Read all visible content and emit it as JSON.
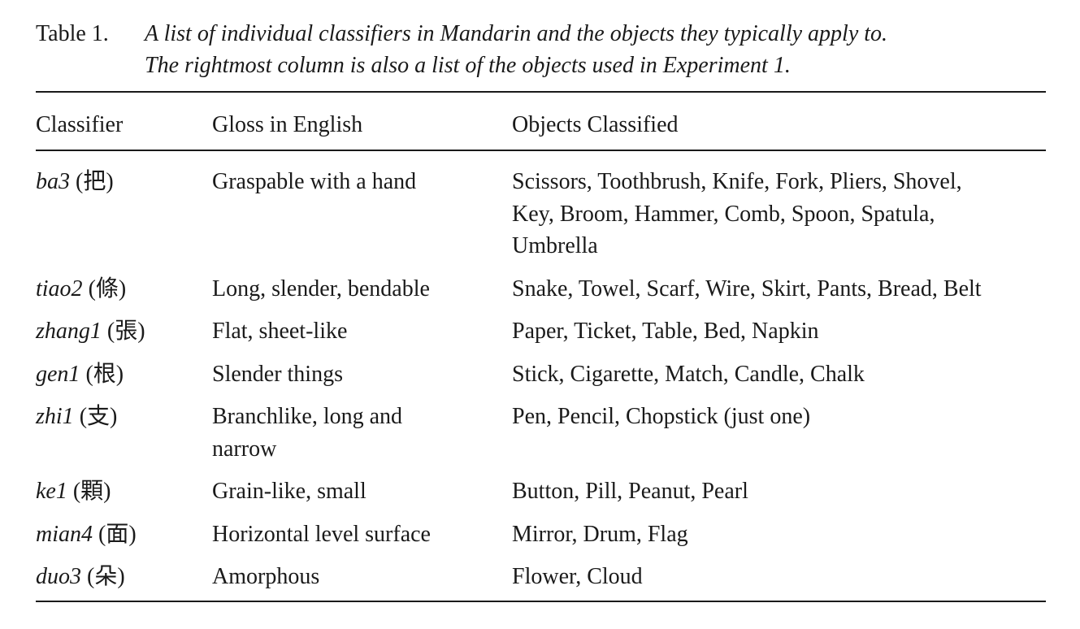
{
  "caption": {
    "label": "Table 1.",
    "lines": [
      "A list of individual classifiers in Mandarin and the objects they typically apply to.",
      "The rightmost column is also a list of the objects used in Experiment 1."
    ]
  },
  "table": {
    "headers": [
      "Classifier",
      "Gloss in English",
      "Objects Classified"
    ],
    "rows": [
      {
        "name": "ba3",
        "char": "(把)",
        "gloss": [
          "Graspable with a hand"
        ],
        "objects": [
          "Scissors, Toothbrush, Knife, Fork, Pliers, Shovel,",
          "Key, Broom, Hammer, Comb, Spoon, Spatula,",
          "Umbrella"
        ]
      },
      {
        "name": "tiao2",
        "char": "(條)",
        "gloss": [
          "Long, slender, bendable"
        ],
        "objects": [
          "Snake, Towel, Scarf, Wire, Skirt, Pants, Bread, Belt"
        ]
      },
      {
        "name": "zhang1",
        "char": "(張)",
        "gloss": [
          "Flat, sheet-like"
        ],
        "objects": [
          "Paper, Ticket, Table, Bed, Napkin"
        ]
      },
      {
        "name": "gen1",
        "char": "(根)",
        "gloss": [
          "Slender things"
        ],
        "objects": [
          "Stick, Cigarette, Match, Candle, Chalk"
        ]
      },
      {
        "name": "zhi1",
        "char": "(支)",
        "gloss": [
          "Branchlike, long and",
          "narrow"
        ],
        "objects": [
          "Pen, Pencil, Chopstick (just one)"
        ]
      },
      {
        "name": "ke1",
        "char": "(顆)",
        "gloss": [
          "Grain-like, small"
        ],
        "objects": [
          "Button, Pill, Peanut, Pearl"
        ]
      },
      {
        "name": "mian4",
        "char": "(面)",
        "gloss": [
          "Horizontal level surface"
        ],
        "objects": [
          "Mirror, Drum, Flag"
        ]
      },
      {
        "name": "duo3",
        "char": "(朵)",
        "gloss": [
          "Amorphous"
        ],
        "objects": [
          "Flower, Cloud"
        ]
      }
    ]
  }
}
